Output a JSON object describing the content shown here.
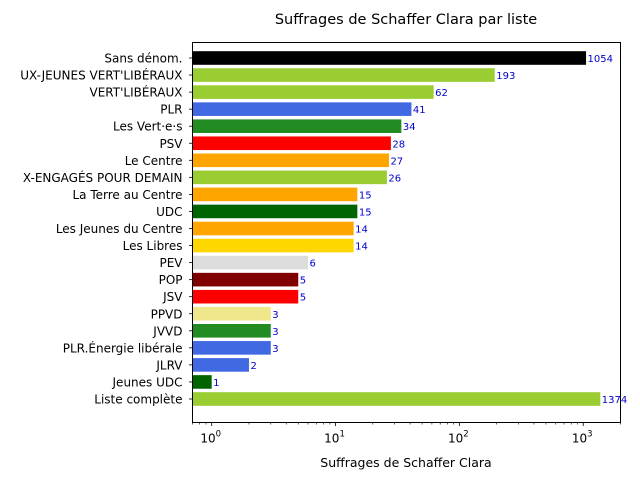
{
  "chart_data": {
    "type": "bar",
    "orientation": "horizontal",
    "title": "Suffrages de Schaffer Clara par liste",
    "xlabel": "Suffrages de Schaffer Clara",
    "ylabel": "",
    "xscale": "log",
    "xlim": [
      0.7,
      2000
    ],
    "xticks": [
      {
        "value": 1,
        "base": "10",
        "exp": "0"
      },
      {
        "value": 10,
        "base": "10",
        "exp": "1"
      },
      {
        "value": 100,
        "base": "10",
        "exp": "2"
      },
      {
        "value": 1000,
        "base": "10",
        "exp": "3"
      }
    ],
    "grid": false,
    "legend": "none",
    "bars": [
      {
        "label": "Sans dénom.",
        "value": 1054,
        "color": "#000000"
      },
      {
        "label": "UX-JEUNES VERT'LIBÉRAUX",
        "value": 193,
        "color": "#9acd32"
      },
      {
        "label": "VERT'LIBÉRAUX",
        "value": 62,
        "color": "#9acd32"
      },
      {
        "label": "PLR",
        "value": 41,
        "color": "#4169e1"
      },
      {
        "label": "Les Vert·e·s",
        "value": 34,
        "color": "#228b22"
      },
      {
        "label": "PSV",
        "value": 28,
        "color": "#ff0000"
      },
      {
        "label": "Le Centre",
        "value": 27,
        "color": "#ffa500"
      },
      {
        "label": "X-ENGAGÉS POUR DEMAIN",
        "value": 26,
        "color": "#9acd32"
      },
      {
        "label": "La Terre au Centre",
        "value": 15,
        "color": "#ffa500"
      },
      {
        "label": "UDC",
        "value": 15,
        "color": "#006400"
      },
      {
        "label": "Les Jeunes du Centre",
        "value": 14,
        "color": "#ffa500"
      },
      {
        "label": "Les Libres",
        "value": 14,
        "color": "#ffd700"
      },
      {
        "label": "PEV",
        "value": 6,
        "color": "#dcdcdc"
      },
      {
        "label": "POP",
        "value": 5,
        "color": "#800000"
      },
      {
        "label": "JSV",
        "value": 5,
        "color": "#ff0000"
      },
      {
        "label": "PPVD",
        "value": 3,
        "color": "#f0e68c"
      },
      {
        "label": "JVVD",
        "value": 3,
        "color": "#228b22"
      },
      {
        "label": "PLR.Énergie libérale",
        "value": 3,
        "color": "#4169e1"
      },
      {
        "label": "JLRV",
        "value": 2,
        "color": "#4169e1"
      },
      {
        "label": "Jeunes UDC",
        "value": 1,
        "color": "#006400"
      },
      {
        "label": "Liste complète",
        "value": 1374,
        "color": "#9acd32"
      }
    ]
  }
}
